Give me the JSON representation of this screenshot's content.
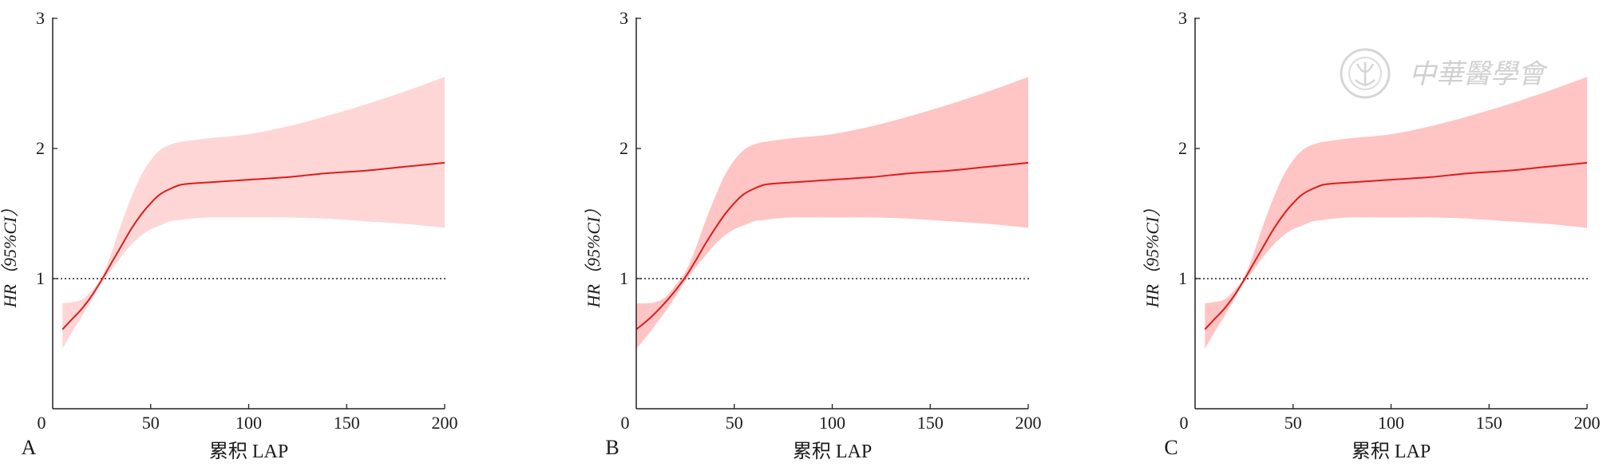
{
  "watermark": {
    "text": "中華醫學會"
  },
  "chart_data": [
    {
      "type": "line",
      "panel_label": "A",
      "xlabel": "累积 LAP",
      "ylabel": "HR（95%CI）",
      "xlim": [
        0,
        200
      ],
      "ylim": [
        0,
        3
      ],
      "xticks": [
        0,
        50,
        100,
        150,
        200
      ],
      "yticks": [
        1,
        2,
        3
      ],
      "reference_line": {
        "y": 1,
        "style": "dotted"
      },
      "x": [
        5,
        10,
        15,
        20,
        25,
        30,
        35,
        40,
        45,
        50,
        55,
        60,
        65,
        70,
        80,
        100,
        120,
        140,
        160,
        180,
        200
      ],
      "series": [
        {
          "y": [
            0.61,
            0.69,
            0.77,
            0.87,
            0.99,
            1.12,
            1.25,
            1.38,
            1.49,
            1.58,
            1.65,
            1.69,
            1.72,
            1.73,
            1.74,
            1.76,
            1.78,
            1.81,
            1.83,
            1.86,
            1.89
          ],
          "lower": [
            0.46,
            0.59,
            0.71,
            0.84,
            0.97,
            1.07,
            1.17,
            1.26,
            1.33,
            1.38,
            1.41,
            1.44,
            1.45,
            1.46,
            1.47,
            1.47,
            1.47,
            1.46,
            1.44,
            1.42,
            1.39
          ],
          "upper": [
            0.81,
            0.82,
            0.84,
            0.91,
            1.01,
            1.2,
            1.42,
            1.62,
            1.79,
            1.91,
            1.99,
            2.03,
            2.05,
            2.06,
            2.08,
            2.11,
            2.17,
            2.25,
            2.34,
            2.44,
            2.55
          ]
        }
      ],
      "colors": {
        "line": "#dd1c1c",
        "band": "#ffd6d6"
      }
    },
    {
      "type": "line",
      "panel_label": "B",
      "xlabel": "累积 LAP",
      "ylabel": "HR（95%CI）",
      "xlim": [
        0,
        200
      ],
      "ylim": [
        0,
        3
      ],
      "xticks": [
        0,
        50,
        100,
        150,
        200
      ],
      "yticks": [
        1,
        2,
        3
      ],
      "reference_line": {
        "y": 1,
        "style": "dotted"
      },
      "x": [
        0,
        5,
        10,
        15,
        20,
        25,
        30,
        35,
        40,
        45,
        50,
        55,
        60,
        65,
        70,
        80,
        100,
        120,
        140,
        160,
        180,
        200
      ],
      "series": [
        {
          "y": [
            0.61,
            0.67,
            0.74,
            0.82,
            0.91,
            1.01,
            1.13,
            1.26,
            1.38,
            1.49,
            1.58,
            1.65,
            1.69,
            1.72,
            1.73,
            1.74,
            1.76,
            1.78,
            1.81,
            1.83,
            1.86,
            1.89
          ],
          "lower": [
            0.46,
            0.55,
            0.65,
            0.75,
            0.86,
            0.98,
            1.08,
            1.17,
            1.26,
            1.33,
            1.38,
            1.41,
            1.44,
            1.45,
            1.46,
            1.47,
            1.47,
            1.47,
            1.46,
            1.44,
            1.42,
            1.39
          ],
          "upper": [
            0.81,
            0.81,
            0.82,
            0.86,
            0.95,
            1.05,
            1.22,
            1.43,
            1.62,
            1.79,
            1.91,
            1.99,
            2.03,
            2.05,
            2.06,
            2.08,
            2.11,
            2.17,
            2.25,
            2.34,
            2.44,
            2.55
          ]
        }
      ],
      "colors": {
        "line": "#dd1c1c",
        "band": "#ffc4c4"
      }
    },
    {
      "type": "line",
      "panel_label": "C",
      "xlabel": "累积 LAP",
      "ylabel": "HR（95%CI）",
      "xlim": [
        0,
        200
      ],
      "ylim": [
        0,
        3
      ],
      "xticks": [
        0,
        50,
        100,
        150,
        200
      ],
      "yticks": [
        1,
        2,
        3
      ],
      "reference_line": {
        "y": 1,
        "style": "dotted"
      },
      "x": [
        5,
        10,
        15,
        20,
        25,
        30,
        35,
        40,
        45,
        50,
        55,
        60,
        65,
        70,
        80,
        100,
        120,
        140,
        160,
        180,
        200
      ],
      "series": [
        {
          "y": [
            0.61,
            0.69,
            0.77,
            0.87,
            0.99,
            1.12,
            1.25,
            1.38,
            1.49,
            1.58,
            1.65,
            1.69,
            1.72,
            1.73,
            1.74,
            1.76,
            1.78,
            1.81,
            1.83,
            1.86,
            1.89
          ],
          "lower": [
            0.46,
            0.59,
            0.71,
            0.84,
            0.97,
            1.07,
            1.17,
            1.26,
            1.33,
            1.38,
            1.41,
            1.44,
            1.45,
            1.46,
            1.47,
            1.47,
            1.47,
            1.46,
            1.44,
            1.42,
            1.39
          ],
          "upper": [
            0.81,
            0.82,
            0.84,
            0.91,
            1.01,
            1.2,
            1.42,
            1.62,
            1.79,
            1.91,
            1.99,
            2.03,
            2.05,
            2.06,
            2.08,
            2.11,
            2.17,
            2.25,
            2.34,
            2.44,
            2.55
          ]
        }
      ],
      "colors": {
        "line": "#dd1c1c",
        "band": "#ffc4c4"
      }
    }
  ]
}
